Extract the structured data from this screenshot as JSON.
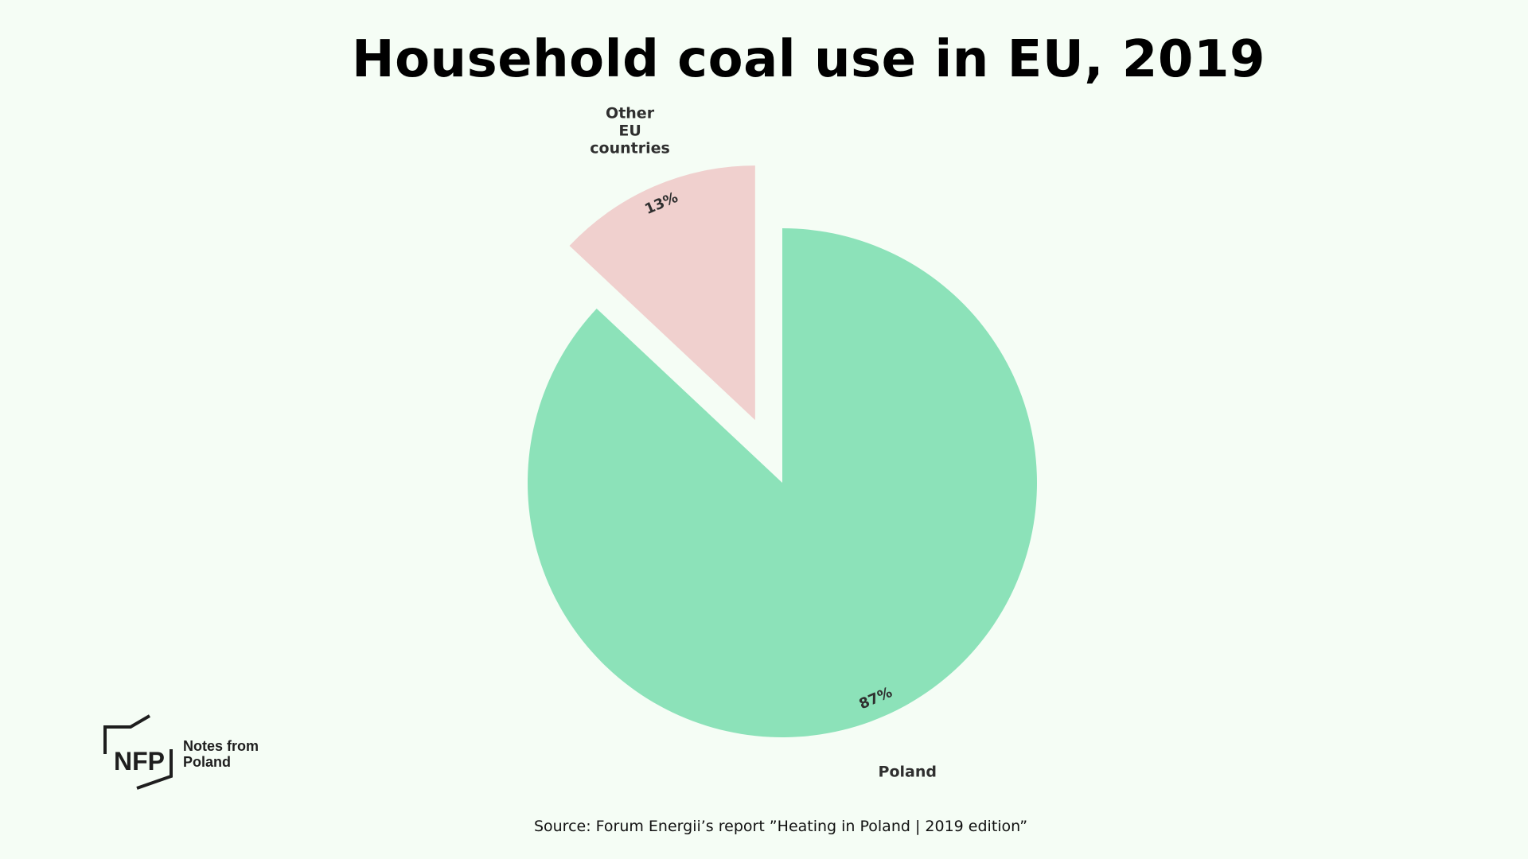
{
  "chart_data": {
    "type": "pie",
    "title": "Household coal use in EU, 2019",
    "slices": [
      {
        "name": "Poland",
        "value": 87,
        "label": "87%",
        "color": "#8ce2b9",
        "exploded": false
      },
      {
        "name": "Other EU countries",
        "label_lines": [
          "Other",
          "EU",
          "countries"
        ],
        "value": 13,
        "label": "13%",
        "color": "#f0d0ce",
        "exploded": true
      }
    ],
    "legend": "none"
  },
  "logo": {
    "mark": "NFP",
    "line1": "Notes from",
    "line2": "Poland"
  },
  "source": "Source: Forum Energii’s report ”Heating in Poland | 2019 edition”",
  "colors": {
    "background": "#f5fdf5",
    "text": "#2f2f2f"
  }
}
